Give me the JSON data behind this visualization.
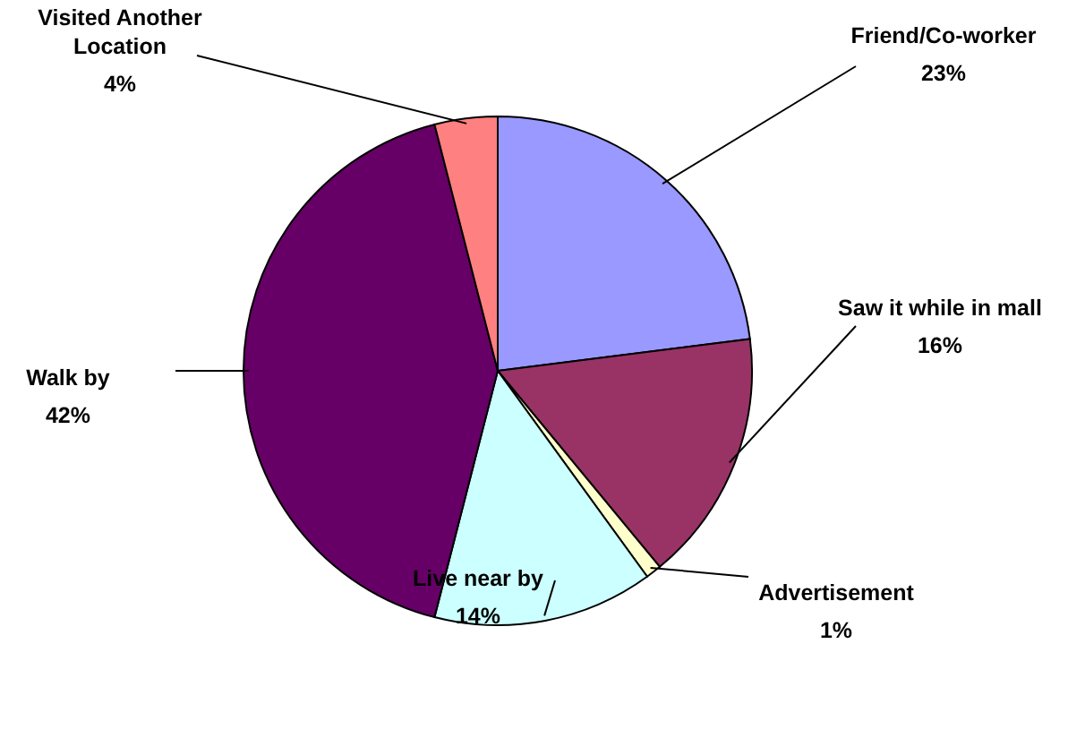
{
  "chart_data": {
    "type": "pie",
    "categories": [
      "Friend/Co-worker",
      "Saw it while in mall",
      "Advertisement",
      "Live near by",
      "Walk by",
      "Visited Another Location"
    ],
    "values": [
      23,
      16,
      1,
      14,
      42,
      4
    ],
    "colors": [
      "#9999ff",
      "#993366",
      "#ffffcc",
      "#ccffff",
      "#660066",
      "#ff8080"
    ],
    "value_labels": [
      "23%",
      "16%",
      "1%",
      "14%",
      "42%",
      "4%"
    ]
  }
}
